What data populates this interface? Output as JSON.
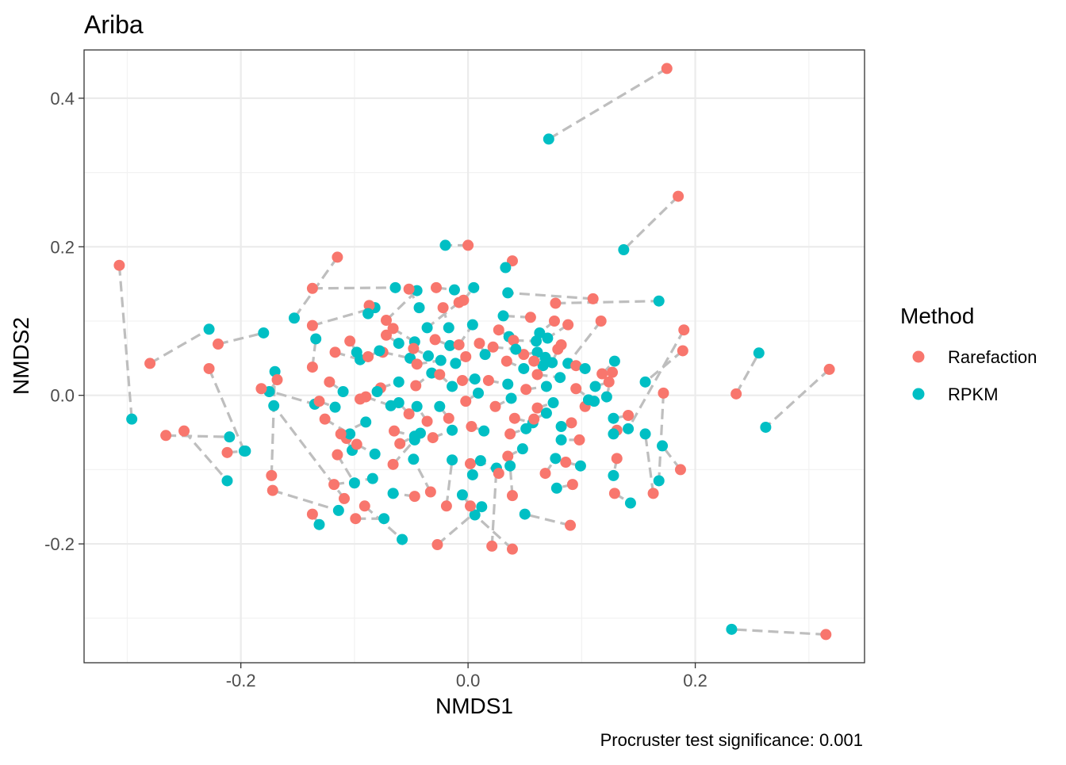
{
  "chart_data": {
    "type": "scatter",
    "title": "Ariba",
    "xlabel": "NMDS1",
    "ylabel": "NMDS2",
    "caption": "Procruster test significance: 0.001",
    "xlim": [
      -0.338,
      0.349
    ],
    "ylim": [
      -0.36,
      0.465
    ],
    "x_ticks": [
      -0.2,
      0.0,
      0.2
    ],
    "x_tick_labels": [
      "-0.2",
      "0.0",
      "0.2"
    ],
    "y_ticks": [
      -0.2,
      0.0,
      0.2,
      0.4
    ],
    "y_tick_labels": [
      "-0.2",
      "0.0",
      "0.2",
      "0.4"
    ],
    "grid": true,
    "legend": {
      "title": "Method",
      "position": "right",
      "entries": [
        {
          "label": "Rarefaction",
          "color": "#F8766D"
        },
        {
          "label": "RPKM",
          "color": "#00BFC4"
        }
      ]
    },
    "connector_color": "#BEBEBE",
    "pairs": [
      [
        [
          0.175,
          0.44
        ],
        [
          0.071,
          0.345
        ]
      ],
      [
        [
          0.185,
          0.268
        ],
        [
          0.137,
          0.196
        ]
      ],
      [
        [
          0.318,
          0.035
        ],
        [
          0.262,
          -0.043
        ]
      ],
      [
        [
          0.236,
          0.002
        ],
        [
          0.256,
          0.057
        ]
      ],
      [
        [
          0.315,
          -0.322
        ],
        [
          0.232,
          -0.315
        ]
      ],
      [
        [
          -0.307,
          0.175
        ],
        [
          -0.296,
          -0.032
        ]
      ],
      [
        [
          -0.28,
          0.043
        ],
        [
          -0.228,
          0.089
        ]
      ],
      [
        [
          -0.266,
          -0.054
        ],
        [
          -0.21,
          -0.056
        ]
      ],
      [
        [
          -0.25,
          -0.048
        ],
        [
          -0.212,
          -0.115
        ]
      ],
      [
        [
          -0.228,
          0.036
        ],
        [
          -0.197,
          -0.075
        ]
      ],
      [
        [
          -0.22,
          0.069
        ],
        [
          -0.18,
          0.084
        ]
      ],
      [
        [
          -0.212,
          -0.077
        ],
        [
          -0.196,
          -0.075
        ]
      ],
      [
        [
          -0.173,
          -0.108
        ],
        [
          -0.17,
          0.032
        ]
      ],
      [
        [
          -0.172,
          -0.128
        ],
        [
          -0.114,
          -0.155
        ]
      ],
      [
        [
          -0.168,
          0.021
        ],
        [
          -0.175,
          0.005
        ]
      ],
      [
        [
          -0.182,
          0.009
        ],
        [
          -0.135,
          -0.012
        ]
      ],
      [
        [
          -0.115,
          0.186
        ],
        [
          -0.153,
          0.104
        ]
      ],
      [
        [
          -0.137,
          0.144
        ],
        [
          -0.064,
          0.145
        ]
      ],
      [
        [
          -0.137,
          0.094
        ],
        [
          -0.082,
          0.118
        ]
      ],
      [
        [
          -0.137,
          0.038
        ],
        [
          -0.134,
          0.076
        ]
      ],
      [
        [
          -0.137,
          -0.16
        ],
        [
          -0.131,
          -0.174
        ]
      ],
      [
        [
          -0.109,
          -0.139
        ],
        [
          -0.171,
          -0.014
        ]
      ],
      [
        [
          -0.118,
          -0.12
        ],
        [
          -0.084,
          -0.112
        ]
      ],
      [
        [
          -0.099,
          -0.166
        ],
        [
          -0.074,
          -0.166
        ]
      ],
      [
        [
          -0.091,
          -0.149
        ],
        [
          -0.058,
          -0.194
        ]
      ],
      [
        [
          -0.087,
          0.121
        ],
        [
          -0.088,
          0.11
        ]
      ],
      [
        [
          -0.072,
          0.101
        ],
        [
          -0.045,
          0.141
        ]
      ],
      [
        [
          -0.072,
          0.081
        ],
        [
          -0.061,
          0.07
        ]
      ],
      [
        [
          -0.075,
          0.058
        ],
        [
          -0.051,
          0.05
        ]
      ],
      [
        [
          -0.052,
          0.143
        ],
        [
          -0.043,
          0.118
        ]
      ],
      [
        [
          -0.028,
          0.145
        ],
        [
          -0.012,
          0.142
        ]
      ],
      [
        [
          -0.008,
          0.125
        ],
        [
          -0.036,
          0.091
        ]
      ],
      [
        [
          -0.022,
          0.118
        ],
        [
          -0.017,
          0.091
        ]
      ],
      [
        [
          -0.004,
          0.128
        ],
        [
          0.005,
          0.145
        ]
      ],
      [
        [
          0.0,
          0.202
        ],
        [
          -0.02,
          0.202
        ]
      ],
      [
        [
          0.039,
          0.181
        ],
        [
          0.033,
          0.172
        ]
      ],
      [
        [
          0.077,
          0.124
        ],
        [
          0.168,
          0.127
        ]
      ],
      [
        [
          0.11,
          0.13
        ],
        [
          0.035,
          0.138
        ]
      ],
      [
        [
          0.076,
          0.1
        ],
        [
          0.063,
          0.084
        ]
      ],
      [
        [
          0.055,
          0.105
        ],
        [
          0.031,
          0.107
        ]
      ],
      [
        [
          0.088,
          0.095
        ],
        [
          0.07,
          0.077
        ]
      ],
      [
        [
          0.117,
          0.1
        ],
        [
          0.088,
          0.043
        ]
      ],
      [
        [
          0.082,
          0.068
        ],
        [
          0.066,
          0.04
        ]
      ],
      [
        [
          0.095,
          0.04
        ],
        [
          0.103,
          0.036
        ]
      ],
      [
        [
          0.118,
          0.029
        ],
        [
          0.129,
          0.046
        ]
      ],
      [
        [
          0.127,
          0.031
        ],
        [
          0.122,
          -0.002
        ]
      ],
      [
        [
          0.141,
          -0.027
        ],
        [
          0.128,
          -0.031
        ]
      ],
      [
        [
          0.131,
          -0.047
        ],
        [
          0.128,
          -0.052
        ]
      ],
      [
        [
          0.131,
          -0.085
        ],
        [
          0.128,
          -0.108
        ]
      ],
      [
        [
          0.129,
          -0.132
        ],
        [
          0.143,
          -0.145
        ]
      ],
      [
        [
          0.163,
          -0.132
        ],
        [
          0.156,
          -0.052
        ]
      ],
      [
        [
          0.172,
          0.003
        ],
        [
          0.168,
          -0.115
        ]
      ],
      [
        [
          0.19,
          0.088
        ],
        [
          0.141,
          -0.045
        ]
      ],
      [
        [
          0.189,
          0.06
        ],
        [
          0.156,
          0.018
        ]
      ],
      [
        [
          0.187,
          -0.1
        ],
        [
          0.171,
          -0.068
        ]
      ],
      [
        [
          0.09,
          -0.175
        ],
        [
          0.05,
          -0.16
        ]
      ],
      [
        [
          0.039,
          -0.207
        ],
        [
          0.006,
          -0.161
        ]
      ],
      [
        [
          -0.027,
          -0.201
        ],
        [
          0.012,
          -0.15
        ]
      ],
      [
        [
          0.021,
          -0.203
        ],
        [
          0.025,
          -0.098
        ]
      ],
      [
        [
          -0.033,
          -0.13
        ],
        [
          -0.048,
          -0.086
        ]
      ],
      [
        [
          -0.047,
          -0.136
        ],
        [
          -0.066,
          -0.132
        ]
      ],
      [
        [
          -0.066,
          -0.093
        ],
        [
          -0.047,
          -0.06
        ]
      ],
      [
        [
          -0.06,
          -0.065
        ],
        [
          -0.042,
          -0.051
        ]
      ],
      [
        [
          -0.019,
          -0.149
        ],
        [
          -0.014,
          -0.087
        ]
      ],
      [
        [
          0.002,
          -0.149
        ],
        [
          -0.005,
          -0.134
        ]
      ],
      [
        [
          0.002,
          -0.092
        ],
        [
          0.004,
          -0.107
        ]
      ],
      [
        [
          0.027,
          -0.105
        ],
        [
          0.011,
          -0.088
        ]
      ],
      [
        [
          0.035,
          -0.082
        ],
        [
          0.048,
          -0.072
        ]
      ],
      [
        [
          0.039,
          -0.135
        ],
        [
          0.037,
          -0.095
        ]
      ],
      [
        [
          0.068,
          -0.105
        ],
        [
          0.077,
          -0.085
        ]
      ],
      [
        [
          0.086,
          -0.09
        ],
        [
          0.099,
          -0.095
        ]
      ],
      [
        [
          0.092,
          -0.12
        ],
        [
          0.078,
          -0.125
        ]
      ],
      [
        [
          0.098,
          -0.06
        ],
        [
          0.082,
          -0.06
        ]
      ],
      [
        [
          -0.107,
          -0.058
        ],
        [
          -0.102,
          -0.074
        ]
      ],
      [
        [
          -0.098,
          -0.066
        ],
        [
          -0.082,
          -0.079
        ]
      ],
      [
        [
          -0.115,
          -0.08
        ],
        [
          -0.1,
          -0.118
        ]
      ],
      [
        [
          -0.122,
          0.018
        ],
        [
          -0.11,
          0.005
        ]
      ],
      [
        [
          -0.126,
          -0.032
        ],
        [
          -0.104,
          -0.052
        ]
      ],
      [
        [
          -0.117,
          0.058
        ],
        [
          -0.095,
          0.048
        ]
      ],
      [
        [
          -0.104,
          0.073
        ],
        [
          -0.098,
          0.058
        ]
      ],
      [
        [
          -0.088,
          0.052
        ],
        [
          -0.078,
          0.06
        ]
      ],
      [
        [
          -0.09,
          -0.002
        ],
        [
          -0.068,
          -0.014
        ]
      ],
      [
        [
          -0.066,
          0.09
        ],
        [
          -0.047,
          0.072
        ]
      ],
      [
        [
          -0.048,
          0.063
        ],
        [
          -0.035,
          0.053
        ]
      ],
      [
        [
          -0.045,
          0.042
        ],
        [
          -0.024,
          0.047
        ]
      ],
      [
        [
          -0.046,
          0.013
        ],
        [
          -0.032,
          0.03
        ]
      ],
      [
        [
          -0.029,
          0.075
        ],
        [
          -0.016,
          0.067
        ]
      ],
      [
        [
          -0.008,
          0.068
        ],
        [
          0.004,
          0.095
        ]
      ],
      [
        [
          0.01,
          0.07
        ],
        [
          0.015,
          0.055
        ]
      ],
      [
        [
          0.027,
          0.088
        ],
        [
          0.036,
          0.079
        ]
      ],
      [
        [
          0.04,
          0.074
        ],
        [
          0.06,
          0.073
        ]
      ],
      [
        [
          0.049,
          0.055
        ],
        [
          0.061,
          0.058
        ]
      ],
      [
        [
          0.079,
          0.062
        ],
        [
          0.074,
          0.044
        ]
      ],
      [
        [
          0.034,
          0.046
        ],
        [
          0.049,
          0.036
        ]
      ],
      [
        [
          0.061,
          0.028
        ],
        [
          0.081,
          0.024
        ]
      ],
      [
        [
          -0.025,
          0.028
        ],
        [
          -0.014,
          0.012
        ]
      ],
      [
        [
          -0.005,
          0.02
        ],
        [
          0.006,
          0.022
        ]
      ],
      [
        [
          0.018,
          0.02
        ],
        [
          0.035,
          0.015
        ]
      ],
      [
        [
          0.051,
          0.008
        ],
        [
          0.069,
          0.012
        ]
      ],
      [
        [
          0.095,
          0.009
        ],
        [
          0.111,
          -0.008
        ]
      ],
      [
        [
          0.091,
          -0.037
        ],
        [
          0.082,
          -0.042
        ]
      ],
      [
        [
          0.061,
          -0.017
        ],
        [
          0.075,
          -0.01
        ]
      ],
      [
        [
          0.041,
          -0.031
        ],
        [
          0.057,
          -0.037
        ]
      ],
      [
        [
          0.024,
          -0.015
        ],
        [
          0.038,
          -0.004
        ]
      ],
      [
        [
          -0.002,
          -0.008
        ],
        [
          0.009,
          0.003
        ]
      ],
      [
        [
          -0.017,
          -0.031
        ],
        [
          -0.025,
          -0.015
        ]
      ],
      [
        [
          -0.036,
          -0.035
        ],
        [
          -0.045,
          -0.015
        ]
      ],
      [
        [
          -0.052,
          -0.025
        ],
        [
          -0.061,
          -0.01
        ]
      ],
      [
        [
          -0.077,
          0.01
        ],
        [
          -0.061,
          0.018
        ]
      ],
      [
        [
          -0.065,
          -0.048
        ],
        [
          -0.047,
          -0.055
        ]
      ],
      [
        [
          -0.031,
          -0.057
        ],
        [
          -0.014,
          -0.047
        ]
      ],
      [
        [
          0.003,
          -0.042
        ],
        [
          0.014,
          -0.048
        ]
      ],
      [
        [
          0.037,
          -0.052
        ],
        [
          0.051,
          -0.045
        ]
      ],
      [
        [
          0.058,
          -0.032
        ],
        [
          0.069,
          -0.024
        ]
      ],
      [
        [
          -0.095,
          -0.005
        ],
        [
          -0.08,
          0.005
        ]
      ],
      [
        [
          -0.112,
          -0.052
        ],
        [
          -0.09,
          -0.036
        ]
      ],
      [
        [
          -0.131,
          -0.008
        ],
        [
          -0.117,
          -0.016
        ]
      ],
      [
        [
          0.103,
          -0.015
        ],
        [
          0.106,
          -0.006
        ]
      ],
      [
        [
          0.124,
          0.018
        ],
        [
          0.112,
          0.012
        ]
      ],
      [
        [
          -0.002,
          0.052
        ],
        [
          -0.011,
          0.043
        ]
      ],
      [
        [
          0.022,
          0.065
        ],
        [
          0.042,
          0.062
        ]
      ],
      [
        [
          0.058,
          0.046
        ],
        [
          0.068,
          0.051
        ]
      ]
    ]
  }
}
